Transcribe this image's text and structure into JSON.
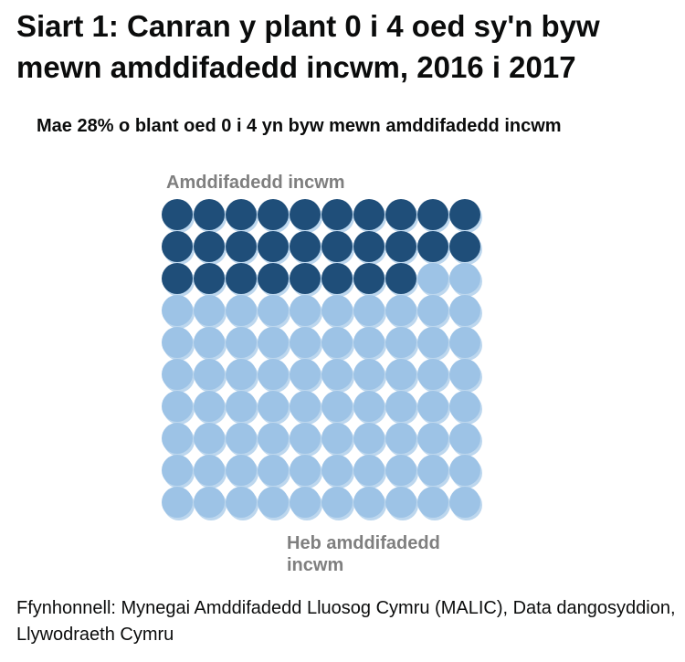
{
  "header": {
    "title": "Siart 1: Canran y plant 0 i 4 oed sy'n byw mewn amddifadedd incwm, 2016 i 2017"
  },
  "chart_data": {
    "type": "waffle",
    "subtitle": "Mae 28% o blant oed 0 i 4 yn byw mewn amddifadedd incwm",
    "grid": {
      "rows": 10,
      "columns": 10
    },
    "total": 100,
    "series": [
      {
        "name": "Amddifadedd incwm",
        "value": 28,
        "color": "#1f4e79"
      },
      {
        "name": "Heb amddifadedd incwm",
        "value": 72,
        "color": "#9dc3e6"
      }
    ]
  },
  "footer": {
    "source": "Ffynhonnell: Mynegai Amddifadedd Lluosog Cymru (MALIC), Data dangosyddion, Llywodraeth Cymru"
  }
}
